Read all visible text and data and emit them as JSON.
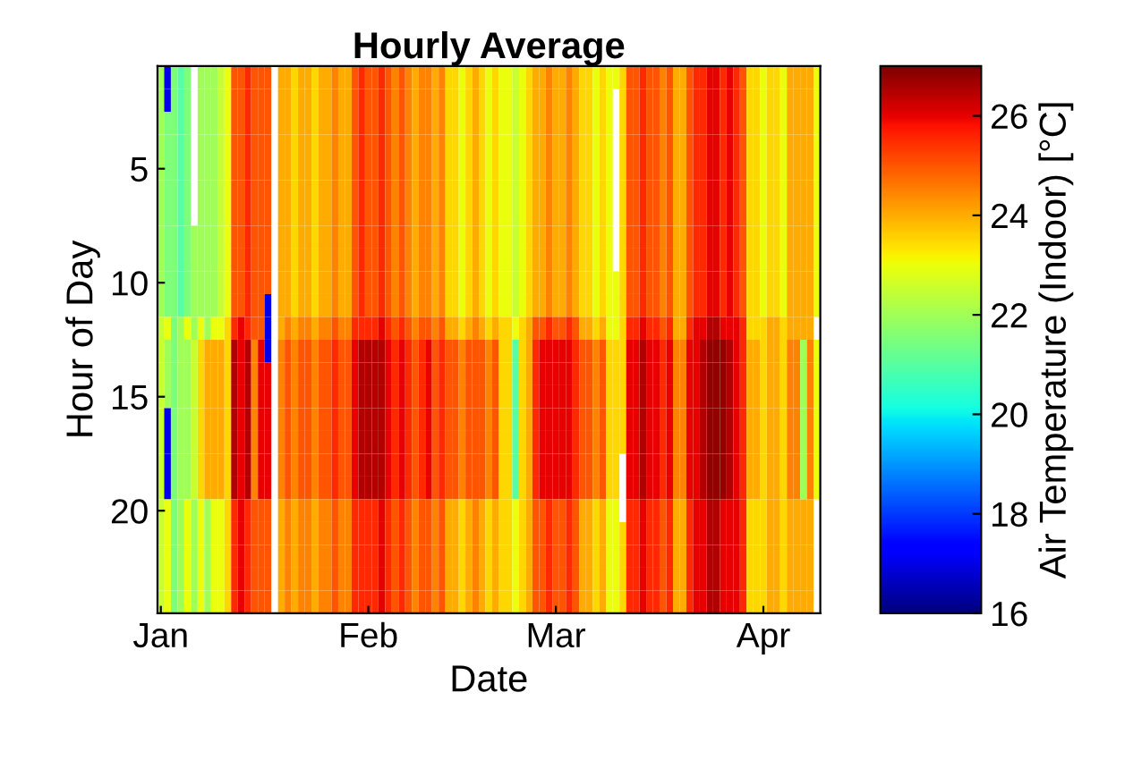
{
  "chart_data": {
    "type": "heatmap",
    "title": "Hourly Average",
    "xlabel": "Date",
    "ylabel": "Hour of Day",
    "clabel": "Air Temperature (Indoor) [°C]",
    "categories": [
      "Jan",
      null,
      null,
      null,
      null,
      null,
      null,
      null,
      null,
      null,
      null,
      null,
      null,
      null,
      null,
      null,
      null,
      null,
      null,
      null,
      null,
      null,
      null,
      null,
      null,
      null,
      null,
      null,
      null,
      null,
      null,
      "Feb",
      null,
      null,
      null,
      null,
      null,
      null,
      null,
      null,
      null,
      null,
      null,
      null,
      null,
      null,
      null,
      null,
      null,
      null,
      null,
      null,
      null,
      null,
      null,
      null,
      null,
      null,
      null,
      "Mar",
      null,
      null,
      null,
      null,
      null,
      null,
      null,
      null,
      null,
      null,
      null,
      null,
      null,
      null,
      null,
      null,
      null,
      null,
      null,
      null,
      null,
      null,
      null,
      null,
      null,
      null,
      null,
      null,
      null,
      null,
      "Apr",
      null,
      null,
      null,
      null,
      null,
      null,
      null,
      null
    ],
    "y_categories": [
      null,
      null,
      null,
      null,
      "5",
      null,
      null,
      null,
      null,
      "10",
      null,
      null,
      null,
      null,
      "15",
      null,
      null,
      null,
      null,
      "20",
      null,
      null,
      null,
      null
    ],
    "clim": [
      16,
      27
    ],
    "cticks": [
      16,
      18,
      20,
      22,
      24,
      26
    ],
    "cells": [
      [
        22,
        17,
        21.5,
        21,
        21.5,
        null,
        22,
        22,
        22,
        22.5,
        23,
        25,
        25,
        25.5,
        25,
        25,
        25,
        null,
        24,
        24,
        23.5,
        24,
        24,
        23.5,
        24,
        24,
        24.5,
        24,
        24,
        25,
        25.5,
        25,
        25,
        25.5,
        25,
        24.5,
        25,
        24.5,
        24,
        24.5,
        24.5,
        24,
        24.5,
        23.5,
        23.5,
        23,
        23.5,
        24,
        23.5,
        23,
        23.5,
        23,
        23,
        22.5,
        23,
        23.5,
        24,
        24,
        24.5,
        24,
        24,
        24.5,
        24,
        23.5,
        23.5,
        23,
        23.5,
        23,
        23,
        23.5,
        25,
        25,
        25.5,
        25,
        25,
        24.5,
        25,
        24,
        24,
        25,
        25.5,
        25.5,
        26,
        26,
        25.5,
        26,
        25.5,
        25,
        23.5,
        23.5,
        23,
        23.5,
        23.5,
        23,
        24,
        24,
        24,
        24,
        23
      ],
      [
        22,
        17,
        21.5,
        21,
        21.5,
        null,
        22,
        22,
        22,
        22.5,
        23,
        25,
        25,
        25.5,
        25,
        25,
        25,
        null,
        24,
        24,
        23.5,
        24,
        24,
        23.5,
        24,
        24,
        24.5,
        24,
        24,
        25,
        25.5,
        25,
        25,
        25.5,
        25,
        24.5,
        25,
        24.5,
        24,
        24.5,
        24.5,
        24,
        24.5,
        23.5,
        23.5,
        23,
        23.5,
        24,
        23.5,
        23,
        23.5,
        23,
        23,
        22.5,
        23,
        23.5,
        24,
        24,
        24.5,
        24,
        24,
        24.5,
        24,
        23.5,
        23.5,
        23,
        23.5,
        23,
        null,
        23.5,
        25,
        25,
        25.5,
        25,
        25,
        24.5,
        25,
        24,
        24,
        25,
        25.5,
        25.5,
        26,
        26,
        25.5,
        26,
        25.5,
        25,
        23.5,
        23.5,
        23,
        23.5,
        23.5,
        23,
        24,
        24,
        24,
        24,
        23
      ],
      [
        22,
        21.5,
        21.5,
        21,
        21.5,
        null,
        22,
        22,
        22,
        22.5,
        23,
        25,
        25,
        25.5,
        25,
        25,
        25,
        null,
        24,
        24,
        23.5,
        24,
        24,
        23.5,
        24,
        24,
        24.5,
        24,
        24,
        25,
        25.5,
        25,
        25,
        25.5,
        25,
        24.5,
        25,
        24.5,
        24,
        24.5,
        24.5,
        24,
        24.5,
        23.5,
        23.5,
        23,
        23.5,
        24,
        23.5,
        23,
        23.5,
        23,
        23,
        22.5,
        23,
        23.5,
        24,
        24,
        24.5,
        24,
        24,
        24.5,
        24,
        23.5,
        23.5,
        23,
        23.5,
        23,
        null,
        23.5,
        25,
        25,
        25.5,
        25,
        25,
        24.5,
        25,
        24,
        24,
        25,
        25.5,
        25.5,
        26,
        26,
        25.5,
        26,
        25.5,
        25,
        23.5,
        23.5,
        23,
        23.5,
        23.5,
        23,
        24,
        24,
        24,
        24,
        23
      ],
      [
        22,
        21.5,
        21.5,
        21,
        21.5,
        null,
        22,
        22,
        22,
        22.5,
        23,
        25,
        25,
        25.5,
        25,
        25,
        25,
        null,
        24,
        24,
        23.5,
        24,
        24,
        23.5,
        24,
        24,
        24.5,
        24,
        24,
        25,
        25.5,
        25,
        25,
        25.5,
        25,
        24.5,
        25,
        24.5,
        24,
        24.5,
        24.5,
        24,
        24.5,
        23.5,
        23.5,
        23,
        23.5,
        24,
        23.5,
        23,
        23.5,
        23,
        23,
        22.5,
        23,
        23.5,
        24,
        24,
        24.5,
        24,
        24,
        24.5,
        24,
        23.5,
        23.5,
        23,
        23.5,
        23,
        null,
        23.5,
        25,
        25,
        25.5,
        25,
        25,
        24.5,
        25,
        24,
        24,
        25,
        25.5,
        25.5,
        26,
        26,
        25.5,
        26,
        25.5,
        25,
        23.5,
        23.5,
        23,
        23.5,
        23.5,
        23,
        24,
        24,
        24,
        24,
        23
      ],
      [
        22,
        21.5,
        21.5,
        21,
        21.5,
        null,
        22,
        22,
        22,
        22.5,
        23,
        25,
        25,
        25.5,
        25,
        25,
        25,
        null,
        24,
        24,
        23.5,
        24,
        24,
        23.5,
        24,
        24,
        24.5,
        24,
        24,
        25,
        25.5,
        25,
        25,
        25.5,
        25,
        24.5,
        25,
        24.5,
        24,
        24.5,
        24.5,
        24,
        24.5,
        23.5,
        23.5,
        23,
        23.5,
        24,
        23.5,
        23,
        23.5,
        23,
        23,
        22.5,
        23,
        23.5,
        24,
        24,
        24.5,
        24,
        24,
        24.5,
        24,
        23.5,
        23.5,
        23,
        23.5,
        23,
        null,
        23.5,
        25,
        25,
        25.5,
        25,
        25,
        24.5,
        25,
        24,
        24,
        25,
        25.5,
        25.5,
        26,
        26,
        25.5,
        26,
        25.5,
        25,
        23.5,
        23.5,
        23,
        23.5,
        23.5,
        23,
        24,
        24,
        24,
        24,
        23
      ],
      [
        22,
        21.5,
        21.5,
        21,
        21.5,
        null,
        22,
        22,
        22,
        22.5,
        23,
        25,
        25,
        25.5,
        25,
        25,
        25,
        null,
        24,
        24,
        23.5,
        24,
        24,
        23.5,
        24,
        24,
        24.5,
        24,
        24,
        25,
        25.5,
        25,
        25,
        25.5,
        25,
        24.5,
        25,
        24.5,
        24,
        24.5,
        24.5,
        24,
        24.5,
        23.5,
        23.5,
        23,
        23.5,
        24,
        23.5,
        23,
        23.5,
        23,
        23,
        22.5,
        23,
        23.5,
        24,
        24,
        24.5,
        24,
        24,
        24.5,
        24,
        23.5,
        23.5,
        23,
        23.5,
        23,
        null,
        23.5,
        25,
        25,
        25.5,
        25,
        25,
        24.5,
        25,
        24,
        24,
        25,
        25.5,
        25.5,
        26,
        26,
        25.5,
        26,
        25.5,
        25,
        23.5,
        23.5,
        23,
        23.5,
        23.5,
        23,
        24,
        24,
        24,
        24,
        23
      ],
      [
        22,
        21.5,
        21.5,
        21,
        21.5,
        null,
        22,
        22,
        22,
        22.5,
        23,
        25,
        25,
        25.5,
        25,
        25,
        25,
        null,
        24,
        24,
        23.5,
        24,
        24,
        23.5,
        24,
        24,
        24.5,
        24,
        24,
        25,
        25.5,
        25,
        25,
        25.5,
        25,
        24.5,
        25,
        24.5,
        24,
        24.5,
        24.5,
        24,
        24.5,
        23.5,
        23.5,
        23,
        23.5,
        24,
        23.5,
        23,
        23.5,
        23,
        23,
        22.5,
        23,
        23.5,
        24,
        24,
        24.5,
        24,
        24,
        24.5,
        24,
        23.5,
        23.5,
        23,
        23.5,
        23,
        null,
        23.5,
        25,
        25,
        25.5,
        25,
        25,
        24.5,
        25,
        24,
        24,
        25,
        25.5,
        25.5,
        26,
        26,
        25.5,
        26,
        25.5,
        25,
        23.5,
        23.5,
        23,
        23.5,
        23.5,
        23,
        24,
        24,
        24,
        24,
        23
      ],
      [
        22,
        21.5,
        21.5,
        21,
        21.5,
        22,
        22,
        22,
        22,
        22.5,
        23,
        25,
        25,
        25.5,
        25,
        25,
        25,
        null,
        24,
        24,
        23.5,
        24,
        24,
        23.5,
        24,
        24,
        24.5,
        24,
        24,
        25,
        25.5,
        25,
        25,
        25.5,
        25,
        24.5,
        25,
        24.5,
        24,
        24.5,
        24.5,
        24,
        24.5,
        23.5,
        23.5,
        23,
        23.5,
        24,
        23.5,
        23,
        23.5,
        23,
        23,
        22.5,
        23,
        23.5,
        24,
        24,
        24.5,
        24,
        24,
        24.5,
        24,
        23.5,
        23.5,
        23,
        23.5,
        23,
        null,
        23.5,
        25,
        25,
        25.5,
        25,
        25,
        24.5,
        25,
        24,
        24,
        25,
        25.5,
        25.5,
        26,
        26,
        25.5,
        26,
        25.5,
        25,
        23.5,
        23.5,
        23,
        23.5,
        23.5,
        23,
        24,
        24,
        24,
        24,
        23
      ],
      [
        22,
        21.5,
        21.5,
        21,
        21.5,
        22,
        22,
        22,
        22,
        22.5,
        23,
        25,
        25,
        25.5,
        25,
        25,
        25,
        null,
        24,
        24,
        23.5,
        24,
        24,
        23.5,
        24,
        24,
        24.5,
        24,
        24,
        25,
        25.5,
        25,
        25,
        25.5,
        25,
        24.5,
        25,
        24.5,
        24,
        24.5,
        24.5,
        24,
        24.5,
        23.5,
        23.5,
        23,
        23.5,
        24,
        23.5,
        23,
        23.5,
        23,
        23,
        22.5,
        23,
        23.5,
        24,
        24,
        24.5,
        24,
        24,
        24.5,
        24,
        23.5,
        23.5,
        23,
        23.5,
        23,
        null,
        23.5,
        25,
        25,
        25.5,
        25,
        25,
        24.5,
        25,
        24,
        24,
        25,
        25.5,
        25.5,
        26,
        26,
        25.5,
        26,
        25.5,
        25,
        23.5,
        23.5,
        23,
        23.5,
        23.5,
        23,
        24,
        24,
        24,
        24,
        23
      ],
      [
        22,
        21.5,
        21.5,
        21,
        21.5,
        22,
        22,
        22,
        22,
        22.5,
        23,
        25,
        25,
        25.5,
        25,
        25,
        25,
        null,
        24,
        24,
        23.5,
        24,
        24,
        23.5,
        24,
        24,
        24.5,
        24,
        24,
        25,
        25.5,
        25,
        25,
        25.5,
        25,
        24.5,
        25,
        24.5,
        24,
        24.5,
        24.5,
        24,
        24.5,
        23.5,
        23.5,
        23,
        23.5,
        24,
        23.5,
        23,
        23.5,
        23,
        23,
        22.5,
        23,
        23.5,
        24,
        24,
        24.5,
        24,
        24,
        24.5,
        24,
        23.5,
        23.5,
        23,
        23.5,
        23,
        23,
        23.5,
        25,
        25,
        25.5,
        25,
        25,
        24.5,
        25,
        24,
        24,
        25,
        25.5,
        25.5,
        26,
        26,
        25.5,
        26,
        25.5,
        25,
        23.5,
        23.5,
        23,
        23.5,
        23.5,
        23,
        24,
        24,
        24,
        24,
        23
      ],
      [
        22,
        21.5,
        21.5,
        21,
        21.5,
        22,
        22,
        22,
        22,
        22.5,
        23,
        25,
        25,
        25.5,
        25,
        25,
        17,
        null,
        24,
        24,
        23.5,
        24,
        24,
        23.5,
        24,
        24,
        24.5,
        24,
        24,
        25,
        25.5,
        25,
        25,
        25.5,
        25,
        24.5,
        25,
        24.5,
        24,
        24.5,
        24.5,
        24,
        24.5,
        23.5,
        23.5,
        23,
        23.5,
        24,
        23.5,
        23,
        23.5,
        23,
        23,
        22.5,
        23,
        23.5,
        24,
        24,
        24.5,
        24,
        24,
        24.5,
        24,
        23.5,
        23.5,
        23,
        23.5,
        23,
        23,
        23.5,
        25,
        25,
        25.5,
        25,
        25,
        24.5,
        25,
        24,
        24,
        25,
        25.5,
        25.5,
        26,
        26,
        25.5,
        26,
        25.5,
        25,
        23.5,
        23.5,
        23,
        23.5,
        23.5,
        23,
        24,
        24,
        24,
        24,
        23
      ],
      [
        22.5,
        23,
        21.5,
        22,
        23,
        22,
        23,
        22,
        23,
        23,
        23.5,
        25.5,
        26,
        25.5,
        25,
        25,
        17,
        null,
        24,
        24.5,
        24,
        24.5,
        24.5,
        24,
        24.5,
        24.5,
        25,
        24.5,
        24.5,
        25.5,
        25.5,
        25.5,
        25.5,
        26,
        25.5,
        25,
        25.5,
        25,
        24.5,
        25,
        25,
        24.5,
        25,
        24,
        24,
        23.5,
        24,
        24.5,
        24,
        23.5,
        24,
        23.5,
        23.5,
        23,
        23.5,
        24,
        25,
        25,
        25.5,
        25,
        25,
        25.5,
        25,
        24,
        24,
        23.5,
        24,
        23,
        23,
        23.5,
        25.5,
        25.5,
        26,
        25.5,
        25.5,
        25,
        25.5,
        24,
        24,
        25.5,
        26,
        26,
        26.5,
        26.5,
        26,
        26,
        26,
        25.5,
        23.5,
        23.5,
        23.5,
        24,
        24,
        23.5,
        24,
        24,
        24,
        24,
        null
      ],
      [
        22.5,
        22,
        21.5,
        22,
        22,
        22.5,
        23.5,
        24,
        24,
        24,
        23.5,
        26.5,
        26,
        26.5,
        24.5,
        26,
        17,
        null,
        24.5,
        25,
        24.5,
        25,
        25,
        24.5,
        25,
        25,
        25.5,
        25,
        25,
        26,
        26.5,
        26.5,
        26.5,
        26.5,
        26,
        25.5,
        26,
        25.5,
        25,
        25.5,
        26,
        25,
        25.5,
        25,
        25,
        24.5,
        25,
        25,
        25,
        24.5,
        25,
        23.5,
        23.5,
        21,
        23.5,
        24,
        25.5,
        26,
        26,
        26,
        26,
        26,
        25.5,
        25,
        25,
        24.5,
        25,
        23.5,
        23.5,
        23.5,
        26,
        26,
        26.5,
        26,
        26,
        25.5,
        26,
        24.5,
        24.5,
        26,
        26,
        26.5,
        26.8,
        26.8,
        26.8,
        26.5,
        26,
        25.5,
        24,
        24,
        23.5,
        24,
        24,
        23.5,
        24.5,
        24.5,
        22,
        24.5,
        23
      ],
      [
        22.5,
        22,
        21.5,
        22,
        22,
        22.5,
        23.5,
        24,
        24,
        24,
        23.5,
        26.5,
        26,
        26.5,
        24.5,
        26,
        26,
        null,
        24.5,
        25,
        24.5,
        25,
        25,
        24.5,
        25,
        25,
        25.5,
        25,
        25,
        26,
        26.5,
        26.5,
        26.5,
        26.5,
        26,
        25.5,
        26,
        25.5,
        25,
        25.5,
        26,
        25,
        25.5,
        25,
        25,
        24.5,
        25,
        25,
        25,
        24.5,
        25,
        23.5,
        23.5,
        21,
        23.5,
        24,
        25.5,
        26,
        26,
        26,
        26,
        26,
        25.5,
        25,
        25,
        24.5,
        25,
        23.5,
        23.5,
        23.5,
        26,
        26,
        26.5,
        26,
        26,
        25.5,
        26,
        24.5,
        24.5,
        26,
        26,
        26.5,
        26.8,
        26.8,
        26.8,
        26.5,
        26,
        25.5,
        24,
        24,
        23.5,
        24,
        24,
        23.5,
        24.5,
        24.5,
        22,
        24.5,
        23
      ],
      [
        22.5,
        22,
        21.5,
        22,
        22,
        22.5,
        23.5,
        24,
        24,
        24,
        23.5,
        26.5,
        26,
        26.5,
        24.5,
        26,
        26,
        null,
        24.5,
        25,
        24.5,
        25,
        25,
        24.5,
        25,
        25,
        25.5,
        25,
        25,
        26,
        26.5,
        26.5,
        26.5,
        26.5,
        26,
        25.5,
        26,
        25.5,
        25,
        25.5,
        26,
        25,
        25.5,
        25,
        25,
        24.5,
        25,
        25,
        25,
        24.5,
        25,
        23.5,
        23.5,
        21,
        23.5,
        24,
        25.5,
        26,
        26,
        26,
        26,
        26,
        25.5,
        25,
        25,
        24.5,
        25,
        23.5,
        23.5,
        23.5,
        26,
        26,
        26.5,
        26,
        26,
        25.5,
        26,
        24.5,
        24.5,
        26,
        26,
        26.5,
        26.8,
        26.8,
        26.8,
        26.5,
        26,
        25.5,
        24,
        24,
        23.5,
        24,
        24,
        23.5,
        24.5,
        24.5,
        22,
        24.5,
        23
      ],
      [
        22.5,
        17,
        21.5,
        22,
        22,
        22.5,
        23.5,
        24,
        24,
        24,
        23.5,
        26.5,
        26,
        26.5,
        24.5,
        26,
        26,
        null,
        24.5,
        25,
        24.5,
        25,
        25,
        24.5,
        25,
        25,
        25.5,
        25,
        25,
        26,
        26.5,
        26.5,
        26.5,
        26.5,
        26,
        25.5,
        26,
        25.5,
        25,
        25.5,
        26,
        25,
        25.5,
        25,
        25,
        24.5,
        25,
        25,
        25,
        24.5,
        25,
        23.5,
        23.5,
        21,
        23.5,
        24,
        25.5,
        26,
        26,
        26,
        26,
        26,
        25.5,
        25,
        25,
        24.5,
        25,
        23.5,
        23.5,
        23.5,
        26,
        26,
        26.5,
        26,
        26,
        25.5,
        26,
        24.5,
        24.5,
        26,
        26,
        26.5,
        26.8,
        26.8,
        26.8,
        26.5,
        26,
        25.5,
        24,
        24,
        23.5,
        24,
        24,
        23.5,
        24.5,
        24.5,
        22,
        24.5,
        23
      ],
      [
        22.5,
        17,
        21.5,
        22,
        22,
        22.5,
        23.5,
        24,
        24,
        24,
        23.5,
        26.5,
        26,
        26.5,
        24.5,
        26,
        26,
        null,
        24.5,
        25,
        24.5,
        25,
        25,
        24.5,
        25,
        25,
        25.5,
        25,
        25,
        26,
        26.5,
        26.5,
        26.5,
        26.5,
        26,
        25.5,
        26,
        25.5,
        25,
        25.5,
        26,
        25,
        25.5,
        25,
        25,
        24.5,
        25,
        25,
        25,
        24.5,
        25,
        23.5,
        23.5,
        21,
        23.5,
        24,
        25.5,
        26,
        26,
        26,
        26,
        26,
        25.5,
        25,
        25,
        24.5,
        25,
        23.5,
        23.5,
        23.5,
        26,
        26,
        26.5,
        26,
        26,
        25.5,
        26,
        24.5,
        24.5,
        26,
        26,
        26.5,
        26.8,
        26.8,
        26.8,
        26.5,
        26,
        25.5,
        24,
        24,
        23.5,
        24,
        24,
        23.5,
        24.5,
        24.5,
        22,
        24.5,
        23
      ],
      [
        22.5,
        17,
        21.5,
        22,
        22,
        22.5,
        23.5,
        24,
        24,
        24,
        23.5,
        26.5,
        26,
        26.5,
        24.5,
        26,
        26,
        null,
        24.5,
        25,
        24.5,
        25,
        25,
        24.5,
        25,
        25,
        25.5,
        25,
        25,
        26,
        26.5,
        26.5,
        26.5,
        26.5,
        26,
        25.5,
        26,
        25.5,
        25,
        25.5,
        26,
        25,
        25.5,
        25,
        25,
        24.5,
        25,
        25,
        25,
        24.5,
        25,
        23.5,
        23.5,
        21,
        23.5,
        24,
        25.5,
        26,
        26,
        26,
        26,
        26,
        25.5,
        25,
        25,
        24.5,
        25,
        23.5,
        23.5,
        null,
        26,
        26,
        26.5,
        26,
        26,
        25.5,
        26,
        24.5,
        24.5,
        26,
        26,
        26.5,
        26.8,
        26.8,
        26.8,
        26.5,
        26,
        25.5,
        24,
        24,
        23.5,
        24,
        24,
        23.5,
        24.5,
        24.5,
        22,
        24.5,
        23
      ],
      [
        22.5,
        17,
        21.5,
        22,
        22,
        22.5,
        23.5,
        24,
        24,
        24,
        23.5,
        26.5,
        26,
        26.5,
        24.5,
        26,
        26,
        null,
        24.5,
        25,
        24.5,
        25,
        25,
        24.5,
        25,
        25,
        25.5,
        25,
        25,
        26,
        26.5,
        26.5,
        26.5,
        26.5,
        26,
        25.5,
        26,
        25.5,
        25,
        25.5,
        26,
        25,
        25.5,
        25,
        25,
        24.5,
        25,
        25,
        25,
        24.5,
        25,
        23.5,
        23.5,
        21,
        23.5,
        24,
        25.5,
        26,
        26,
        26,
        26,
        26,
        25.5,
        25,
        25,
        24.5,
        25,
        23.5,
        23.5,
        null,
        26,
        26,
        26.5,
        26,
        26,
        25.5,
        26,
        24.5,
        24.5,
        26,
        26,
        26.5,
        26.8,
        26.8,
        26.8,
        26.5,
        26,
        25.5,
        24,
        24,
        23.5,
        24,
        24,
        23.5,
        24.5,
        24.5,
        22,
        24.5,
        23
      ],
      [
        22.5,
        23,
        21.5,
        22,
        23,
        22,
        23,
        22,
        23,
        23,
        23.5,
        25.5,
        26,
        25.5,
        25,
        25,
        25,
        null,
        24,
        24.5,
        24,
        24.5,
        24.5,
        24,
        24.5,
        24.5,
        25,
        24.5,
        24.5,
        25.5,
        25.5,
        25.5,
        25.5,
        26,
        25.5,
        25,
        25.5,
        25,
        24.5,
        25,
        25,
        24.5,
        25,
        24,
        24,
        23.5,
        24,
        24.5,
        24,
        23.5,
        24,
        23.5,
        23.5,
        23,
        23.5,
        24,
        25,
        25,
        25.5,
        25,
        25,
        25.5,
        25,
        24,
        24,
        23.5,
        24,
        23,
        23,
        null,
        25.5,
        25.5,
        26,
        25.5,
        25.5,
        25,
        25.5,
        24,
        24,
        25.5,
        26,
        26,
        26.5,
        26.5,
        26,
        26,
        26,
        25.5,
        23.5,
        23.5,
        23.5,
        24,
        24,
        23.5,
        24,
        24,
        24,
        24,
        null
      ],
      [
        22.5,
        23,
        21.5,
        22,
        23,
        22,
        23,
        22,
        23,
        23,
        23.5,
        25.5,
        26,
        25.5,
        25,
        25,
        25,
        null,
        24,
        24.5,
        24,
        24.5,
        24.5,
        24,
        24.5,
        24.5,
        25,
        24.5,
        24.5,
        25.5,
        25.5,
        25.5,
        25.5,
        26,
        25.5,
        25,
        25.5,
        25,
        24.5,
        25,
        25,
        24.5,
        25,
        24,
        24,
        23.5,
        24,
        24.5,
        24,
        23.5,
        24,
        23.5,
        23.5,
        23,
        23.5,
        24,
        25,
        25,
        25.5,
        25,
        25,
        25.5,
        25,
        24,
        24,
        23.5,
        24,
        23,
        23,
        23.5,
        25.5,
        25.5,
        26,
        25.5,
        25.5,
        25,
        25.5,
        24,
        24,
        25.5,
        26,
        26,
        26.5,
        26.5,
        26,
        26,
        26,
        25.5,
        23.5,
        23.5,
        23.5,
        24,
        24,
        23.5,
        24,
        24,
        24,
        24,
        null
      ],
      [
        22.5,
        23,
        21.5,
        22,
        23,
        22,
        23,
        22,
        23,
        23,
        23.5,
        25.5,
        26,
        25.5,
        25,
        25,
        25,
        null,
        24,
        24.5,
        24,
        24.5,
        24.5,
        24,
        24.5,
        24.5,
        25,
        24.5,
        24.5,
        25.5,
        25.5,
        25.5,
        25.5,
        26,
        25.5,
        25,
        25.5,
        25,
        24.5,
        25,
        25,
        24.5,
        25,
        24,
        24,
        23.5,
        24,
        24.5,
        24,
        23.5,
        24,
        23.5,
        23.5,
        23,
        23.5,
        24,
        25,
        25,
        25.5,
        25,
        25,
        25.5,
        25,
        24,
        24,
        23.5,
        24,
        23,
        23,
        23.5,
        25.5,
        25.5,
        26,
        25.5,
        25.5,
        25,
        25.5,
        24,
        24,
        25.5,
        26,
        26,
        26.5,
        26.5,
        26,
        26,
        26,
        25.5,
        23.5,
        23.5,
        23.5,
        24,
        24,
        23.5,
        24,
        24,
        24,
        24,
        null
      ],
      [
        22.5,
        23,
        21.5,
        22,
        23,
        22,
        23,
        22,
        23,
        23,
        23.5,
        25.5,
        26,
        25.5,
        25,
        25,
        25,
        null,
        24,
        24.5,
        24,
        24.5,
        24.5,
        24,
        24.5,
        24.5,
        25,
        24.5,
        24.5,
        25.5,
        25.5,
        25.5,
        25.5,
        26,
        25.5,
        25,
        25.5,
        25,
        24.5,
        25,
        25,
        24.5,
        25,
        24,
        24,
        23.5,
        24,
        24.5,
        24,
        23.5,
        24,
        23.5,
        23.5,
        23,
        23.5,
        24,
        25,
        25,
        25.5,
        25,
        25,
        25.5,
        25,
        24,
        24,
        23.5,
        24,
        23,
        23,
        23.5,
        25.5,
        25.5,
        26,
        25.5,
        25.5,
        25,
        25.5,
        24,
        24,
        25.5,
        26,
        26,
        26.5,
        26.5,
        26,
        26,
        26,
        25.5,
        23.5,
        23.5,
        23.5,
        24,
        24,
        23.5,
        24,
        24,
        24,
        24,
        null
      ],
      [
        22.5,
        23,
        21.5,
        22,
        23,
        22,
        23,
        22,
        23,
        23,
        23.5,
        25.5,
        26,
        25.5,
        25,
        25,
        25,
        null,
        24,
        24.5,
        24,
        24.5,
        24.5,
        24,
        24.5,
        24.5,
        25,
        24.5,
        24.5,
        25.5,
        25.5,
        25.5,
        25.5,
        26,
        25.5,
        25,
        25.5,
        25,
        24.5,
        25,
        25,
        24.5,
        25,
        24,
        24,
        23.5,
        24,
        24.5,
        24,
        23.5,
        24,
        23.5,
        23.5,
        23,
        23.5,
        24,
        25,
        25,
        25.5,
        25,
        25,
        25.5,
        25,
        24,
        24,
        23.5,
        24,
        23,
        23,
        23.5,
        25.5,
        25.5,
        26,
        25.5,
        25.5,
        25,
        25.5,
        24,
        24,
        25.5,
        26,
        26,
        26.5,
        26.5,
        26,
        26,
        26,
        25.5,
        23.5,
        23.5,
        23.5,
        24,
        24,
        23.5,
        24,
        24,
        24,
        24,
        null
      ]
    ]
  }
}
